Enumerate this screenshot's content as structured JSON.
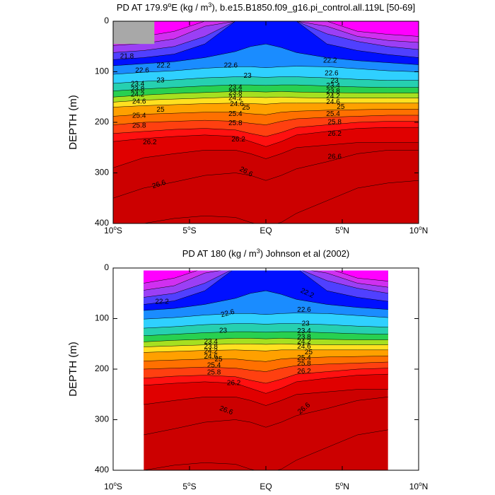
{
  "colors": {
    "magenta": "#ff00ff",
    "light_purple": "#d030f0",
    "purple": "#9b3ff5",
    "blue_purple": "#5040ff",
    "blue": "#1040ff",
    "dark_blue": "#0010ff",
    "azure": "#1a8cff",
    "cyan": "#2fd0ff",
    "teal": "#26d0b0",
    "green": "#28d050",
    "yellow_green": "#a6e020",
    "yellow": "#ffe020",
    "orange": "#ffa000",
    "dark_orange": "#ff7000",
    "red_orange": "#ff4010",
    "red": "#ff1010",
    "dark_red": "#e00000",
    "crimson": "#cc0000",
    "land_mask": "#a8a8a8"
  },
  "chart_data": [
    {
      "type": "contour",
      "title_parts": [
        "PD AT 179.9",
        "o",
        "E (kg / m",
        "3",
        "), b.e15.B1850.f09_g16.pi_control.all.119L [50-69]"
      ],
      "xlabel": "",
      "ylabel": "DEPTH (m)",
      "xlim": [
        -10,
        10
      ],
      "ylim": [
        0,
        400
      ],
      "y_inverted": true,
      "x_ticks": [
        {
          "v": -10,
          "num": "10",
          "sup": "o",
          "hemi": "S"
        },
        {
          "v": -5,
          "num": "5",
          "sup": "o",
          "hemi": "S"
        },
        {
          "v": 0,
          "num": "EQ",
          "sup": "",
          "hemi": ""
        },
        {
          "v": 5,
          "num": "5",
          "sup": "o",
          "hemi": "N"
        },
        {
          "v": 10,
          "num": "10",
          "sup": "o",
          "hemi": "N"
        }
      ],
      "y_ticks": [
        {
          "v": 0,
          "label": "0"
        },
        {
          "v": 100,
          "label": "100"
        },
        {
          "v": 200,
          "label": "200"
        },
        {
          "v": 300,
          "label": "300"
        },
        {
          "v": 400,
          "label": "400"
        }
      ],
      "land_mask": {
        "x": [
          -10,
          -7.3
        ],
        "depth": [
          0,
          45
        ]
      },
      "contour_labels": [
        {
          "text": "21.8",
          "x": -9.1,
          "y": 70
        },
        {
          "text": "22.2",
          "x": -6.7,
          "y": 88
        },
        {
          "text": "22.2",
          "x": 4.2,
          "y": 78
        },
        {
          "text": "22.6",
          "x": -8.1,
          "y": 98
        },
        {
          "text": "22.6",
          "x": -2.3,
          "y": 88
        },
        {
          "text": "22.6",
          "x": 4.3,
          "y": 103
        },
        {
          "text": "23",
          "x": -6.9,
          "y": 117
        },
        {
          "text": "23",
          "x": -1.2,
          "y": 108
        },
        {
          "text": "23",
          "x": 4.5,
          "y": 118
        },
        {
          "text": "23.4",
          "x": -8.4,
          "y": 124
        },
        {
          "text": "23.4",
          "x": -2.0,
          "y": 131
        },
        {
          "text": "23.4",
          "x": 4.4,
          "y": 128
        },
        {
          "text": "23.8",
          "x": -8.4,
          "y": 135
        },
        {
          "text": "23.8",
          "x": -2.0,
          "y": 142
        },
        {
          "text": "23.8",
          "x": 4.4,
          "y": 139
        },
        {
          "text": "24.2",
          "x": -8.4,
          "y": 145
        },
        {
          "text": "24.2",
          "x": -2.0,
          "y": 152
        },
        {
          "text": "24.2",
          "x": 4.4,
          "y": 149
        },
        {
          "text": "24.6",
          "x": -8.3,
          "y": 159
        },
        {
          "text": "24.6",
          "x": -1.9,
          "y": 164
        },
        {
          "text": "24.6",
          "x": 4.4,
          "y": 160
        },
        {
          "text": "25",
          "x": -6.9,
          "y": 175
        },
        {
          "text": "25",
          "x": -1.3,
          "y": 171
        },
        {
          "text": "25",
          "x": 4.9,
          "y": 170
        },
        {
          "text": "25.4",
          "x": -8.3,
          "y": 187
        },
        {
          "text": "25.4",
          "x": -2.0,
          "y": 184
        },
        {
          "text": "25.4",
          "x": 4.4,
          "y": 184
        },
        {
          "text": "25.8",
          "x": -8.3,
          "y": 207
        },
        {
          "text": "25.8",
          "x": -2.0,
          "y": 202
        },
        {
          "text": "25.8",
          "x": 4.5,
          "y": 200
        },
        {
          "text": "26.2",
          "x": -7.6,
          "y": 240
        },
        {
          "text": "26.2",
          "x": -1.8,
          "y": 234
        },
        {
          "text": "26.2",
          "x": 4.5,
          "y": 223
        },
        {
          "text": "26.6",
          "x": -7.0,
          "y": 323,
          "rot": -18
        },
        {
          "text": "26.6",
          "x": -1.3,
          "y": 298,
          "rot": 28
        },
        {
          "text": "26.6",
          "x": 4.5,
          "y": 268
        }
      ]
    },
    {
      "type": "contour",
      "title_parts": [
        "PD AT 180 (kg / m",
        "3",
        ") Johnson et al (2002)"
      ],
      "xlabel": "",
      "ylabel": "DEPTH (m)",
      "xlim": [
        -10,
        10
      ],
      "ylim": [
        0,
        400
      ],
      "y_inverted": true,
      "data_extent_x": [
        -8,
        8
      ],
      "data_extent_depth": [
        5,
        400
      ],
      "x_ticks": [
        {
          "v": -10,
          "num": "10",
          "sup": "o",
          "hemi": "S"
        },
        {
          "v": -5,
          "num": "5",
          "sup": "o",
          "hemi": "S"
        },
        {
          "v": 0,
          "num": "EQ",
          "sup": "",
          "hemi": ""
        },
        {
          "v": 5,
          "num": "5",
          "sup": "o",
          "hemi": "N"
        },
        {
          "v": 10,
          "num": "10",
          "sup": "o",
          "hemi": "N"
        }
      ],
      "y_ticks": [
        {
          "v": 0,
          "label": "0"
        },
        {
          "v": 100,
          "label": "100"
        },
        {
          "v": 200,
          "label": "200"
        },
        {
          "v": 300,
          "label": "300"
        },
        {
          "v": 400,
          "label": "400"
        }
      ],
      "contour_labels": [
        {
          "text": "22.2",
          "x": -6.8,
          "y": 67
        },
        {
          "text": "22.2",
          "x": 2.7,
          "y": 50,
          "rot": 25
        },
        {
          "text": "22.6",
          "x": -2.5,
          "y": 90,
          "rot": -15
        },
        {
          "text": "22.6",
          "x": 2.5,
          "y": 83
        },
        {
          "text": "23",
          "x": -2.8,
          "y": 124
        },
        {
          "text": "23",
          "x": 2.6,
          "y": 110
        },
        {
          "text": "23.4",
          "x": -3.6,
          "y": 146
        },
        {
          "text": "23.4",
          "x": 2.5,
          "y": 125
        },
        {
          "text": "23.8",
          "x": -3.6,
          "y": 156
        },
        {
          "text": "23.8",
          "x": 2.5,
          "y": 137
        },
        {
          "text": "24.2",
          "x": -3.6,
          "y": 165
        },
        {
          "text": "24.2",
          "x": 2.5,
          "y": 146
        },
        {
          "text": "24.6",
          "x": -3.6,
          "y": 175
        },
        {
          "text": "24.6",
          "x": 2.5,
          "y": 156
        },
        {
          "text": "25",
          "x": -3.1,
          "y": 181
        },
        {
          "text": "25",
          "x": 2.8,
          "y": 167
        },
        {
          "text": "25.4",
          "x": -3.4,
          "y": 193
        },
        {
          "text": "25.4",
          "x": 2.5,
          "y": 178
        },
        {
          "text": "25.8",
          "x": -3.4,
          "y": 207
        },
        {
          "text": "25.8",
          "x": 2.5,
          "y": 189
        },
        {
          "text": "26.2",
          "x": -2.1,
          "y": 228
        },
        {
          "text": "26.2",
          "x": 2.5,
          "y": 205
        },
        {
          "text": "26.6",
          "x": -2.6,
          "y": 282,
          "rot": 20
        },
        {
          "text": "26.6",
          "x": 2.5,
          "y": 278,
          "rot": -40
        }
      ]
    }
  ]
}
